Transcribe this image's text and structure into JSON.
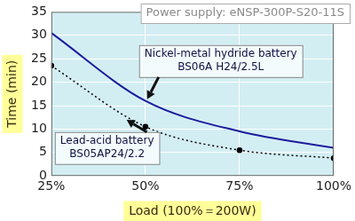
{
  "chart_data": {
    "type": "line",
    "title": "Power supply: eNSP-300P-S20-11S",
    "x_label": "Load (100%＝200W)",
    "y_label": "Time (min)",
    "categories": [
      "25%",
      "50%",
      "75%",
      "100%"
    ],
    "series": [
      {
        "name": "Nickel-metal hydride battery",
        "model": "BS06A H24/2.5L",
        "color": "#1c1c9c",
        "line_style": "solid",
        "marker": "none",
        "values": [
          30.5,
          16,
          9.5,
          6
        ]
      },
      {
        "name": "Lead-acid battery",
        "model": "BS05AP24/2.2",
        "color": "#000000",
        "line_style": "dotted",
        "marker": "circle",
        "values": [
          23.5,
          10.5,
          5.5,
          3.8
        ]
      }
    ],
    "ylim": [
      0,
      35
    ],
    "yticks": [
      0,
      5,
      10,
      15,
      20,
      25,
      30,
      35
    ],
    "grid": true
  }
}
